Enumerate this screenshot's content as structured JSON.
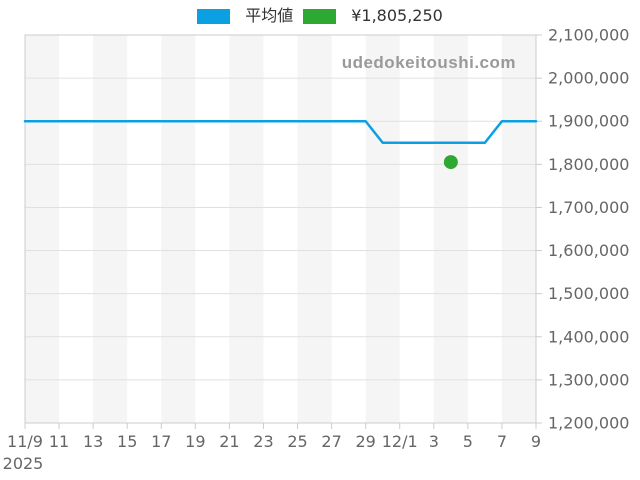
{
  "watermark": "udedokeitoushi.com",
  "legend": {
    "items": [
      {
        "label": "平均値",
        "color": "#0aa0e1"
      },
      {
        "label": "¥1,805,250",
        "color": "#2ca833"
      }
    ]
  },
  "chart_data": {
    "type": "line",
    "title": "",
    "xlabel": "",
    "ylabel": "",
    "x_start_date": "11/9",
    "x_end_date": "12/9",
    "x_year_label": "2025",
    "x_tick_labels": [
      "11/9",
      "11",
      "13",
      "15",
      "17",
      "19",
      "21",
      "23",
      "25",
      "27",
      "29",
      "12/1",
      "3",
      "5",
      "7",
      "9"
    ],
    "y_tick_labels": [
      "2,100,000",
      "2,000,000",
      "1,900,000",
      "1,800,000",
      "1,700,000",
      "1,600,000",
      "1,500,000",
      "1,400,000",
      "1,300,000",
      "1,200,000"
    ],
    "ylim": [
      1200000,
      2100000
    ],
    "grid": true,
    "legend_position": "top",
    "series": [
      {
        "name": "平均値",
        "type": "line",
        "color": "#0aa0e1",
        "values": [
          1900000,
          1900000,
          1900000,
          1900000,
          1900000,
          1900000,
          1900000,
          1900000,
          1900000,
          1900000,
          1900000,
          1900000,
          1900000,
          1900000,
          1900000,
          1900000,
          1900000,
          1900000,
          1900000,
          1900000,
          1900000,
          1850000,
          1850000,
          1850000,
          1850000,
          1850000,
          1850000,
          1850000,
          1900000,
          1900000,
          1900000
        ]
      },
      {
        "name": "¥1,805,250",
        "type": "scatter",
        "color": "#2ca833",
        "points": [
          {
            "x_index": 25,
            "date": "12/4",
            "value": 1805250
          }
        ]
      }
    ],
    "plot_style": {
      "stripe_color": "#f5f5f5",
      "grid_color": "#e0e0e0",
      "border_color": "#cccccc",
      "label_color": "#666666"
    }
  }
}
